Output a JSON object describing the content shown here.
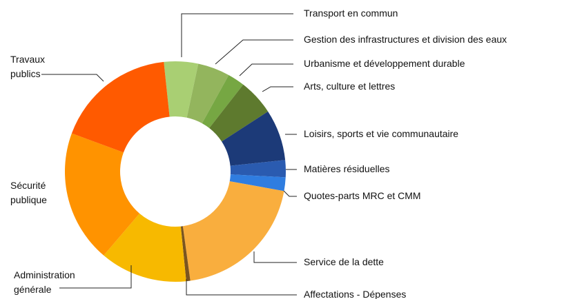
{
  "chart_data": {
    "type": "donut",
    "categories": [
      "Transport en commun",
      "Gestion des infrastructures et division des eaux",
      "Urbanisme et développement durable",
      "Arts, culture et lettres",
      "Loisirs, sports et vie communautaire",
      "Matières résiduelles",
      "Quotes-parts MRC et CMM",
      "Service de la dette",
      "Affectations - Dépenses",
      "Administration générale",
      "Sécurité publique",
      "Travaux publics"
    ],
    "values": [
      5,
      4.7,
      2.5,
      5.3,
      7.5,
      2.5,
      2,
      20,
      0.6,
      12.8,
      19.4,
      17.7
    ],
    "colors": [
      "#a9cf73",
      "#93b55d",
      "#76a743",
      "#5e7a2e",
      "#1c3a78",
      "#2a5bb0",
      "#2f7de0",
      "#f9ae3e",
      "#7a5520",
      "#f7b900",
      "#ff9300",
      "#ff5a00"
    ]
  }
}
